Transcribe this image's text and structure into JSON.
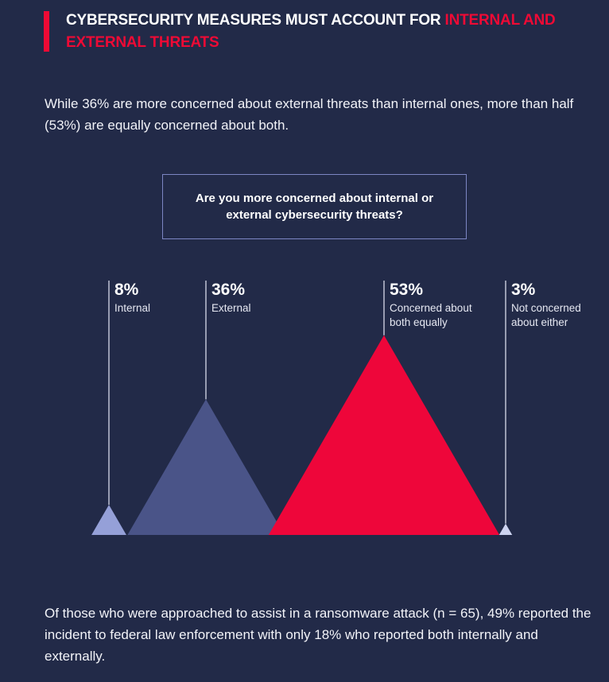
{
  "header": {
    "title_white": "CYBERSECURITY MEASURES MUST ACCOUNT FOR ",
    "title_red": "INTERNAL AND EXTERNAL THREATS"
  },
  "intro": "While 36% are more concerned about external threats than internal ones, more than half (53%) are equally concerned about both.",
  "outro": "Of those who were approached to assist in a ransomware attack (n = 65), 49% reported the incident to federal law enforcement with only 18% who reported both internally and externally.",
  "chart_data": {
    "type": "bar",
    "title": "Are you more concerned about internal or external cybersecurity threats?",
    "categories": [
      "Internal",
      "External",
      "Concerned about both equally",
      "Not concerned about either"
    ],
    "values": [
      8,
      36,
      53,
      3
    ],
    "labels": [
      "8%",
      "36%",
      "53%",
      "3%"
    ],
    "colors": [
      "#95a0d8",
      "#4a5488",
      "#ee063a",
      "#cdd3f0"
    ],
    "unit": "%"
  }
}
